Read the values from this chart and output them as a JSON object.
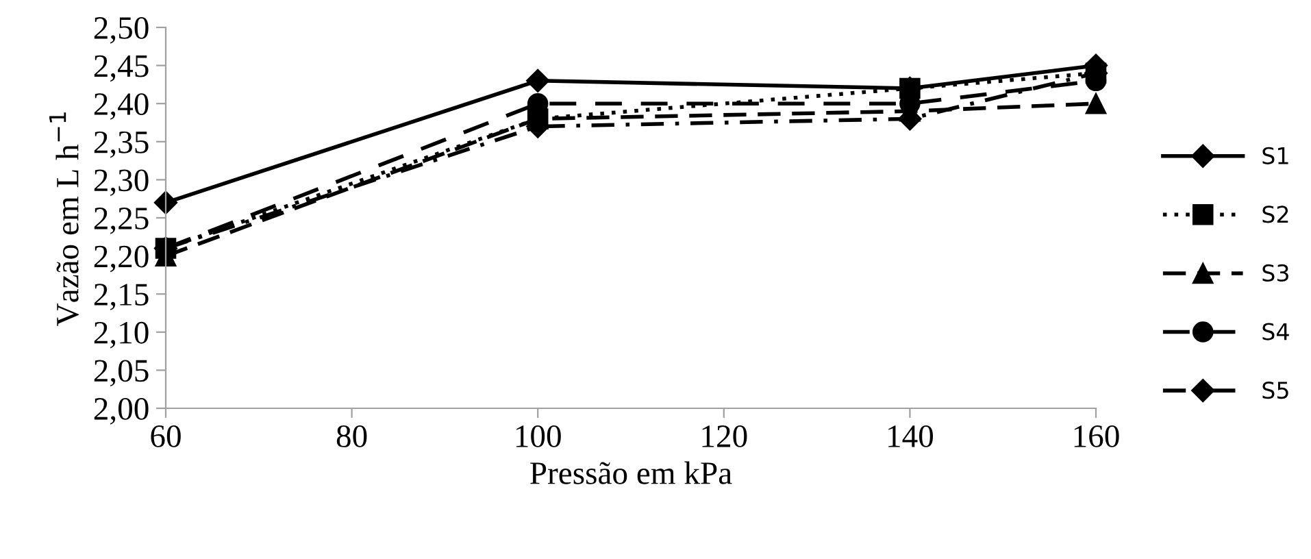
{
  "chart_data": {
    "type": "line",
    "xlabel": "Pressão em kPa",
    "ylabel": "Vazão em L h$^{−1}$",
    "x": [
      60,
      100,
      140,
      160
    ],
    "series": [
      {
        "name": "S1",
        "color": "#000000",
        "marker": "diamond",
        "line_style": "solid",
        "values": [
          2.27,
          2.43,
          2.42,
          2.45
        ]
      },
      {
        "name": "S2",
        "color": "#000000",
        "marker": "square",
        "line_style": "dotted",
        "values": [
          2.21,
          2.38,
          2.42,
          2.44
        ]
      },
      {
        "name": "S3",
        "color": "#000000",
        "marker": "triangle",
        "line_style": "dashed",
        "values": [
          2.2,
          2.38,
          2.39,
          2.4
        ]
      },
      {
        "name": "S4",
        "color": "#000000",
        "marker": "circle",
        "line_style": "dashed",
        "values": [
          2.21,
          2.4,
          2.4,
          2.43
        ]
      },
      {
        "name": "S5",
        "color": "#000000",
        "marker": "diamond",
        "line_style": "dashed",
        "values": [
          2.21,
          2.37,
          2.38,
          2.44
        ]
      }
    ],
    "xlim": [
      60,
      160
    ],
    "xticks": [
      {
        "value": 60,
        "label": "60"
      },
      {
        "value": 80,
        "label": "80"
      },
      {
        "value": 100,
        "label": "100"
      },
      {
        "value": 120,
        "label": "120"
      },
      {
        "value": 140,
        "label": "140"
      },
      {
        "value": 160,
        "label": "160"
      }
    ],
    "ylim": [
      2.0,
      2.5
    ],
    "yticks": [
      {
        "value": 2.0,
        "label": "2,00"
      },
      {
        "value": 2.05,
        "label": "2,05"
      },
      {
        "value": 2.1,
        "label": "2,10"
      },
      {
        "value": 2.15,
        "label": "2,15"
      },
      {
        "value": 2.2,
        "label": "2,20"
      },
      {
        "value": 2.25,
        "label": "2,25"
      },
      {
        "value": 2.3,
        "label": "2,30"
      },
      {
        "value": 2.35,
        "label": "2,35"
      },
      {
        "value": 2.4,
        "label": "2,40"
      },
      {
        "value": 2.45,
        "label": "2,45"
      },
      {
        "value": 2.5,
        "label": "2,50"
      }
    ],
    "legend": "right",
    "grid": false
  }
}
